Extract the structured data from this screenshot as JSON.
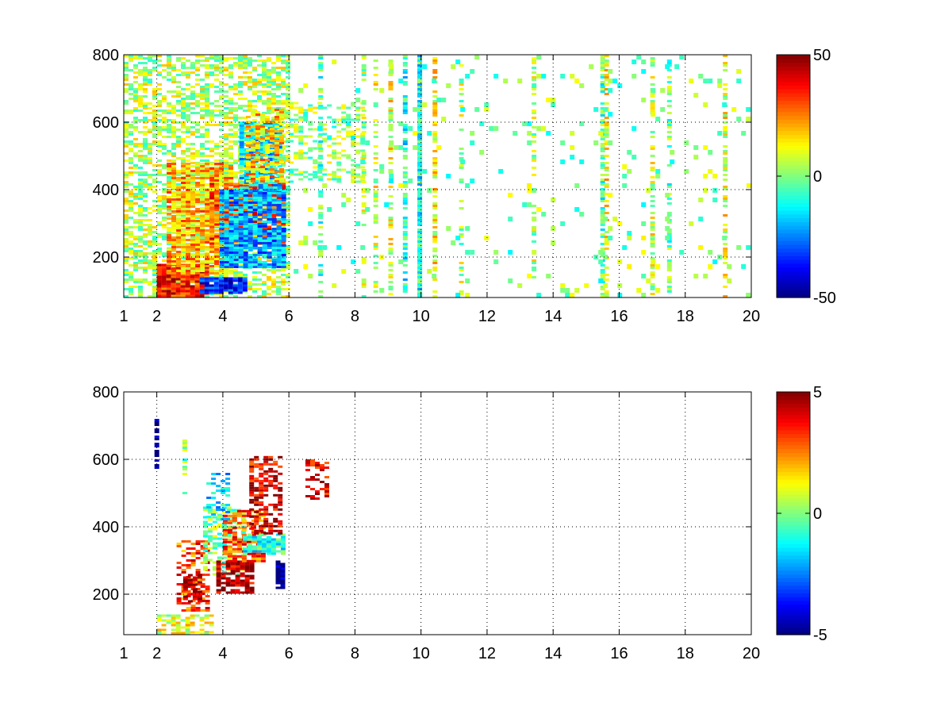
{
  "chart_data": [
    {
      "type": "heatmap",
      "title": "",
      "xlabel": "",
      "ylabel": "",
      "xlim": [
        1,
        20
      ],
      "ylim": [
        80,
        800
      ],
      "xticks": [
        "1",
        "2",
        "4",
        "6",
        "8",
        "10",
        "12",
        "14",
        "16",
        "18",
        "20"
      ],
      "yticks": [
        "200",
        "400",
        "600",
        "800"
      ],
      "grid": true,
      "colormap": "jet",
      "colorbar": {
        "range": [
          -50,
          50
        ],
        "ticks": [
          "50",
          "0",
          "-50"
        ]
      },
      "regions": [
        {
          "x": [
            1.0,
            6.0
          ],
          "y": [
            80,
            800
          ],
          "density": 0.55,
          "value": 5
        },
        {
          "x": [
            2.0,
            3.5
          ],
          "y": [
            80,
            180
          ],
          "density": 0.95,
          "value": 35
        },
        {
          "x": [
            3.3,
            4.7
          ],
          "y": [
            90,
            140
          ],
          "density": 0.9,
          "value": -35
        },
        {
          "x": [
            2.3,
            4.2
          ],
          "y": [
            150,
            480
          ],
          "density": 0.8,
          "value": 20
        },
        {
          "x": [
            3.6,
            5.8
          ],
          "y": [
            240,
            420
          ],
          "density": 0.85,
          "value": 30
        },
        {
          "x": [
            3.9,
            5.8
          ],
          "y": [
            170,
            400
          ],
          "density": 0.85,
          "value": -22
        },
        {
          "x": [
            4.5,
            5.8
          ],
          "y": [
            400,
            600
          ],
          "density": 0.75,
          "value": -15
        },
        {
          "x": [
            4.7,
            5.8
          ],
          "y": [
            420,
            640
          ],
          "density": 0.6,
          "value": 18
        },
        {
          "x": [
            6.0,
            8.3
          ],
          "y": [
            420,
            660
          ],
          "density": 0.35,
          "value": 2
        }
      ],
      "stripes": [
        {
          "x": 6.95,
          "width": 0.12,
          "density": 0.55,
          "value": -5
        },
        {
          "x": 8.25,
          "width": 0.1,
          "density": 0.4,
          "value": 5
        },
        {
          "x": 8.6,
          "width": 0.08,
          "density": 0.45,
          "value": 8
        },
        {
          "x": 9.05,
          "width": 0.08,
          "density": 0.5,
          "value": 10
        },
        {
          "x": 9.5,
          "width": 0.1,
          "density": 0.6,
          "value": -10
        },
        {
          "x": 9.95,
          "width": 0.12,
          "density": 0.95,
          "value": -10
        },
        {
          "x": 10.4,
          "width": 0.1,
          "density": 0.45,
          "value": 12
        },
        {
          "x": 11.2,
          "width": 0.1,
          "density": 0.35,
          "value": 5
        },
        {
          "x": 13.4,
          "width": 0.1,
          "density": 0.3,
          "value": 5
        },
        {
          "x": 15.5,
          "width": 0.14,
          "density": 0.7,
          "value": -5
        },
        {
          "x": 15.6,
          "width": 0.1,
          "density": 0.55,
          "value": 12
        },
        {
          "x": 17.0,
          "width": 0.12,
          "density": 0.5,
          "value": 8
        },
        {
          "x": 17.5,
          "width": 0.1,
          "density": 0.45,
          "value": -3
        },
        {
          "x": 19.2,
          "width": 0.12,
          "density": 0.45,
          "value": 10
        }
      ],
      "noise": {
        "x": [
          6.0,
          20.0
        ],
        "y": [
          80,
          800
        ],
        "density": 0.06,
        "value": 0
      }
    },
    {
      "type": "heatmap",
      "title": "",
      "xlabel": "",
      "ylabel": "",
      "xlim": [
        1,
        20
      ],
      "ylim": [
        80,
        800
      ],
      "xticks": [
        "1",
        "2",
        "4",
        "6",
        "8",
        "10",
        "12",
        "14",
        "16",
        "18",
        "20"
      ],
      "yticks": [
        "200",
        "400",
        "600",
        "800"
      ],
      "grid": true,
      "colormap": "jet",
      "colorbar": {
        "range": [
          -5,
          5
        ],
        "ticks": [
          "5",
          "0",
          "-5"
        ]
      },
      "regions": [
        {
          "x": [
            2.0,
            3.6
          ],
          "y": [
            80,
            140
          ],
          "density": 0.6,
          "value": 1
        },
        {
          "x": [
            2.6,
            3.6
          ],
          "y": [
            150,
            360
          ],
          "density": 0.5,
          "value": 3
        },
        {
          "x": [
            2.8,
            3.3
          ],
          "y": [
            180,
            260
          ],
          "density": 0.7,
          "value": 5
        },
        {
          "x": [
            3.4,
            4.6
          ],
          "y": [
            260,
            460
          ],
          "density": 0.55,
          "value": 0
        },
        {
          "x": [
            3.8,
            4.9
          ],
          "y": [
            200,
            300
          ],
          "density": 0.7,
          "value": 4.5
        },
        {
          "x": [
            4.0,
            5.2
          ],
          "y": [
            300,
            450
          ],
          "density": 0.6,
          "value": 3
        },
        {
          "x": [
            4.6,
            5.8
          ],
          "y": [
            320,
            380
          ],
          "density": 0.75,
          "value": -1
        },
        {
          "x": [
            4.8,
            5.8
          ],
          "y": [
            380,
            610
          ],
          "density": 0.65,
          "value": 4
        },
        {
          "x": [
            5.6,
            5.8
          ],
          "y": [
            220,
            300
          ],
          "density": 0.9,
          "value": -5
        },
        {
          "x": [
            3.5,
            4.2
          ],
          "y": [
            420,
            560
          ],
          "density": 0.35,
          "value": -1.5
        },
        {
          "x": [
            6.5,
            7.2
          ],
          "y": [
            480,
            600
          ],
          "density": 0.45,
          "value": 4
        }
      ],
      "stripes": [
        {
          "x": 1.95,
          "width": 0.04,
          "y": [
            560,
            720
          ],
          "density": 0.45,
          "value": -5
        },
        {
          "x": 2.8,
          "width": 0.05,
          "y": [
            500,
            680
          ],
          "density": 0.35,
          "value": 0
        }
      ],
      "noise": {
        "x": [
          1.0,
          2.2
        ],
        "y": [
          300,
          450
        ],
        "density": 0.03,
        "value": 0
      }
    }
  ]
}
